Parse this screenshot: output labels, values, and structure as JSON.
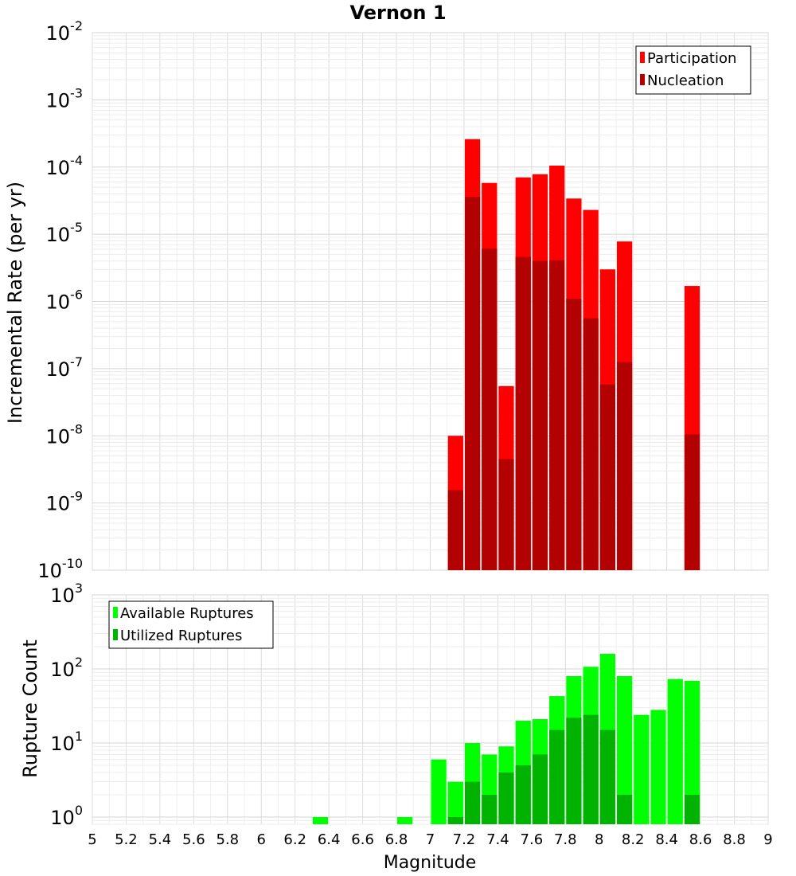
{
  "title": "Vernon 1",
  "chart_data": [
    {
      "type": "bar",
      "ylabel": "Incremental Rate (per yr)",
      "xlabel": "",
      "yscale": "log",
      "ylim": [
        1e-10,
        0.01
      ],
      "xlim": [
        5,
        9
      ],
      "grid": true,
      "legend_position": "top-right",
      "x": [
        7.15,
        7.25,
        7.35,
        7.45,
        7.55,
        7.65,
        7.75,
        7.85,
        7.95,
        8.05,
        8.15,
        8.55
      ],
      "series": [
        {
          "name": "Participation",
          "color": "#ff0000",
          "values": [
            1e-08,
            0.00026,
            5.8e-05,
            5.5e-08,
            7e-05,
            7.8e-05,
            0.000105,
            3.4e-05,
            2.3e-05,
            3e-06,
            7.8e-06,
            1.7e-06
          ]
        },
        {
          "name": "Nucleation",
          "color": "#b30000",
          "values": [
            1.55e-09,
            3.6e-05,
            6.1e-06,
            4.5e-09,
            4.6e-06,
            4e-06,
            4.1e-06,
            1.1e-06,
            5.6e-07,
            5.8e-08,
            1.25e-07,
            1.05e-08
          ]
        }
      ]
    },
    {
      "type": "bar",
      "ylabel": "Rupture Count",
      "xlabel": "Magnitude",
      "yscale": "log",
      "ylim": [
        0.8,
        1000
      ],
      "xlim": [
        5,
        9
      ],
      "grid": true,
      "legend_position": "top-left",
      "x": [
        6.35,
        6.85,
        7.05,
        7.15,
        7.25,
        7.35,
        7.45,
        7.55,
        7.65,
        7.75,
        7.85,
        7.95,
        8.05,
        8.15,
        8.25,
        8.35,
        8.45,
        8.55
      ],
      "series": [
        {
          "name": "Available Ruptures",
          "color": "#00ff00",
          "values": [
            1,
            1,
            6,
            3,
            10,
            7,
            9,
            20,
            21,
            43,
            80,
            107,
            160,
            80,
            24,
            28,
            73,
            69
          ]
        },
        {
          "name": "Utilized Ruptures",
          "color": "#00b300",
          "values": [
            0,
            0,
            0,
            1,
            3,
            2,
            4,
            5,
            7,
            15,
            22,
            24,
            15,
            2,
            0,
            0,
            0,
            2
          ]
        }
      ]
    }
  ],
  "xticks": [
    "5",
    "5.2",
    "5.4",
    "5.6",
    "5.8",
    "6",
    "6.2",
    "6.4",
    "6.6",
    "6.8",
    "7",
    "7.2",
    "7.4",
    "7.6",
    "7.8",
    "8",
    "8.2",
    "8.4",
    "8.6",
    "8.8",
    "9"
  ],
  "top_yticks": [
    {
      "base": "10",
      "exp": "-10"
    },
    {
      "base": "10",
      "exp": "-9"
    },
    {
      "base": "10",
      "exp": "-8"
    },
    {
      "base": "10",
      "exp": "-7"
    },
    {
      "base": "10",
      "exp": "-6"
    },
    {
      "base": "10",
      "exp": "-5"
    },
    {
      "base": "10",
      "exp": "-4"
    },
    {
      "base": "10",
      "exp": "-3"
    },
    {
      "base": "10",
      "exp": "-2"
    }
  ],
  "bottom_yticks": [
    {
      "base": "10",
      "exp": "0"
    },
    {
      "base": "10",
      "exp": "1"
    },
    {
      "base": "10",
      "exp": "2"
    },
    {
      "base": "10",
      "exp": "3"
    }
  ]
}
